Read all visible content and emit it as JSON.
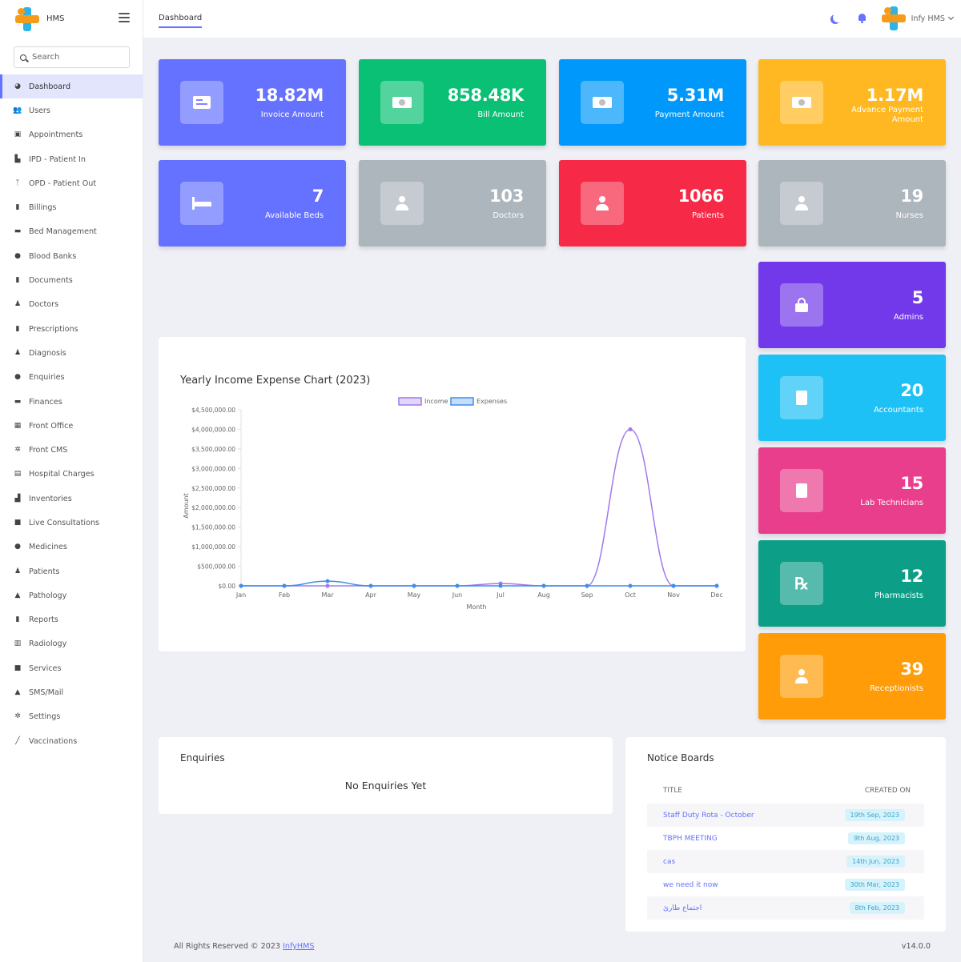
{
  "brand": {
    "name": "HMS"
  },
  "search": {
    "placeholder": "Search"
  },
  "sidebar": {
    "items": [
      {
        "label": "Dashboard",
        "icon": "palette-icon",
        "glyph": "◕",
        "active": true
      },
      {
        "label": "Users",
        "icon": "users-icon",
        "glyph": "👥"
      },
      {
        "label": "Appointments",
        "icon": "calendar-check-icon",
        "glyph": "▣"
      },
      {
        "label": "IPD - Patient In",
        "icon": "procedures-icon",
        "glyph": "▙"
      },
      {
        "label": "OPD - Patient Out",
        "icon": "stethoscope-icon",
        "glyph": "ᛉ"
      },
      {
        "label": "Billings",
        "icon": "file-invoice-icon",
        "glyph": "▮"
      },
      {
        "label": "Bed Management",
        "icon": "bed-icon",
        "glyph": "▬"
      },
      {
        "label": "Blood Banks",
        "icon": "tint-icon",
        "glyph": "●"
      },
      {
        "label": "Documents",
        "icon": "file-icon",
        "glyph": "▮"
      },
      {
        "label": "Doctors",
        "icon": "user-md-icon",
        "glyph": "♟"
      },
      {
        "label": "Prescriptions",
        "icon": "file-prescription-icon",
        "glyph": "▮"
      },
      {
        "label": "Diagnosis",
        "icon": "diagnoses-icon",
        "glyph": "♟"
      },
      {
        "label": "Enquiries",
        "icon": "question-circle-icon",
        "glyph": "●"
      },
      {
        "label": "Finances",
        "icon": "money-bill-icon",
        "glyph": "▬"
      },
      {
        "label": "Front Office",
        "icon": "dumpster-icon",
        "glyph": "▦"
      },
      {
        "label": "Front CMS",
        "icon": "gear-icon",
        "glyph": "✲"
      },
      {
        "label": "Hospital Charges",
        "icon": "coins-icon",
        "glyph": "▤"
      },
      {
        "label": "Inventories",
        "icon": "dolly-icon",
        "glyph": "▟"
      },
      {
        "label": "Live Consultations",
        "icon": "video-icon",
        "glyph": "■"
      },
      {
        "label": "Medicines",
        "icon": "capsules-icon",
        "glyph": "●"
      },
      {
        "label": "Patients",
        "icon": "user-injured-icon",
        "glyph": "♟"
      },
      {
        "label": "Pathology",
        "icon": "flask-icon",
        "glyph": "▲"
      },
      {
        "label": "Reports",
        "icon": "file-medical-icon",
        "glyph": "▮"
      },
      {
        "label": "Radiology",
        "icon": "x-ray-icon",
        "glyph": "▥"
      },
      {
        "label": "Services",
        "icon": "box-icon",
        "glyph": "■"
      },
      {
        "label": "SMS/Mail",
        "icon": "bell-icon",
        "glyph": "▲"
      },
      {
        "label": "Settings",
        "icon": "gears-icon",
        "glyph": "✲"
      },
      {
        "label": "Vaccinations",
        "icon": "syringe-icon",
        "glyph": "╱"
      }
    ]
  },
  "header": {
    "tab": "Dashboard",
    "user": "Infy HMS"
  },
  "stats": [
    {
      "value": "18.82M",
      "label": "Invoice Amount",
      "color": "#6571ff",
      "icon": "invoice-icon"
    },
    {
      "value": "858.48K",
      "label": "Bill Amount",
      "color": "#0ac074",
      "icon": "money-icon"
    },
    {
      "value": "5.31M",
      "label": "Payment Amount",
      "color": "#0099fb",
      "icon": "money-icon"
    },
    {
      "value": "1.17M",
      "label": "Advance Payment Amount",
      "color": "#ffb821",
      "icon": "money-icon"
    },
    {
      "value": "7",
      "label": "Available Beds",
      "color": "#6571ff",
      "icon": "bed-icon"
    },
    {
      "value": "103",
      "label": "Doctors",
      "color": "#adb5bd",
      "icon": "doctor-icon"
    },
    {
      "value": "1066",
      "label": "Patients",
      "color": "#f62947",
      "icon": "patient-icon"
    },
    {
      "value": "19",
      "label": "Nurses",
      "color": "#adb5bd",
      "icon": "nurse-icon"
    },
    {
      "value": "5",
      "label": "Admins",
      "color": "#7239ea",
      "icon": "lock-icon"
    },
    {
      "value": "20",
      "label": "Accountants",
      "color": "#1ec1f5",
      "icon": "document-icon"
    },
    {
      "value": "15",
      "label": "Lab Technicians",
      "color": "#e83e8c",
      "icon": "lab-icon"
    },
    {
      "value": "12",
      "label": "Pharmacists",
      "color": "#0d9e88",
      "icon": "prescription-icon"
    },
    {
      "value": "39",
      "label": "Receptionists",
      "color": "#ff9c07",
      "icon": "receptionist-icon"
    }
  ],
  "chart_data": {
    "type": "line",
    "title": "Yearly Income Expense Chart (2023)",
    "xlabel": "Month",
    "ylabel": "Amount",
    "categories": [
      "Jan",
      "Feb",
      "Mar",
      "Apr",
      "May",
      "Jun",
      "Jul",
      "Aug",
      "Sep",
      "Oct",
      "Nov",
      "Dec"
    ],
    "y_ticks": [
      "$4,500,000.00",
      "$4,000,000.00",
      "$3,500,000.00",
      "$3,000,000.00",
      "$2,500,000.00",
      "$2,000,000.00",
      "$1,500,000.00",
      "$1,000,000.00",
      "$500,000.00",
      "$0.00"
    ],
    "ylim": [
      0,
      4500000
    ],
    "legend": "top",
    "series": [
      {
        "name": "Income",
        "color": "#9f7aea",
        "values": [
          0,
          0,
          0,
          0,
          0,
          0,
          60000,
          0,
          0,
          4000000,
          0,
          0
        ]
      },
      {
        "name": "Expenses",
        "color": "#3f8ee8",
        "values": [
          0,
          0,
          120000,
          0,
          0,
          0,
          0,
          0,
          0,
          0,
          0,
          0
        ]
      }
    ]
  },
  "enquiries": {
    "title": "Enquiries",
    "empty": "No Enquiries Yet"
  },
  "notice": {
    "title": "Notice Boards",
    "col_title": "TITLE",
    "col_created": "CREATED ON",
    "rows": [
      {
        "title": "Staff Duty Rota - October",
        "date": "19th Sep, 2023"
      },
      {
        "title": "TBPH MEETING",
        "date": "9th Aug, 2023"
      },
      {
        "title": "cas",
        "date": "14th Jun, 2023"
      },
      {
        "title": "we need it now",
        "date": "30th Mar, 2023"
      },
      {
        "title": "اجتماع طارئ",
        "date": "8th Feb, 2023"
      }
    ]
  },
  "footer": {
    "text": "All Rights Reserved © 2023",
    "link": "InfyHMS",
    "version": "v14.0.0"
  }
}
